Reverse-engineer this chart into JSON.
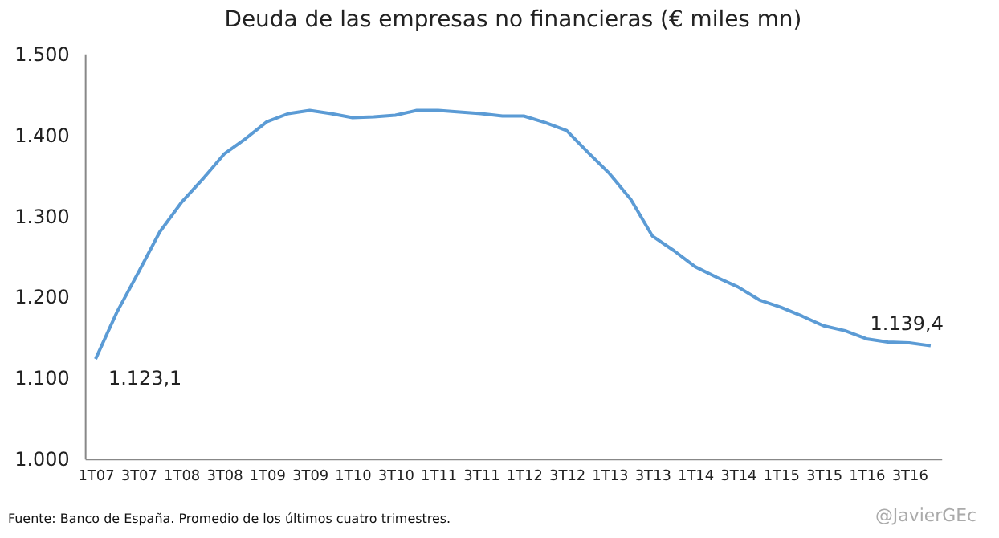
{
  "chart_data": {
    "type": "line",
    "title": "Deuda de las empresas no financieras (€ miles mn)",
    "categories": [
      "1T07",
      null,
      "3T07",
      null,
      "1T08",
      null,
      "3T08",
      null,
      "1T09",
      null,
      "3T09",
      null,
      "1T10",
      null,
      "3T10",
      null,
      "1T11",
      null,
      "3T11",
      null,
      "1T12",
      null,
      "3T12",
      null,
      "1T13",
      null,
      "3T13",
      null,
      "1T14",
      null,
      "3T14",
      null,
      "1T15",
      null,
      "3T15",
      null,
      "1T16",
      null,
      "3T16",
      null
    ],
    "values": [
      1123.1,
      1181,
      1230,
      1280,
      1316,
      1345,
      1376,
      1395,
      1416,
      1426,
      1430,
      1426,
      1421,
      1422,
      1424,
      1430,
      1430,
      1428,
      1426,
      1423,
      1423,
      1415,
      1405,
      1378,
      1352,
      1320,
      1275,
      1257,
      1237,
      1224,
      1212,
      1196,
      1187,
      1176,
      1164,
      1158,
      1148,
      1144,
      1143,
      1139.4
    ],
    "value_labels": [
      "1.123,1",
      null,
      null,
      null,
      null,
      null,
      null,
      null,
      null,
      null,
      null,
      null,
      null,
      null,
      null,
      null,
      null,
      null,
      null,
      null,
      null,
      null,
      null,
      null,
      null,
      null,
      null,
      null,
      null,
      null,
      null,
      null,
      null,
      null,
      null,
      null,
      null,
      null,
      null,
      "1.139,4"
    ],
    "color": "#5b9bd5",
    "ylim": [
      1000,
      1500
    ],
    "yticks": [
      {
        "value": 1000,
        "label": "1.000"
      },
      {
        "value": 1100,
        "label": "1.100"
      },
      {
        "value": 1200,
        "label": "1.200"
      },
      {
        "value": 1300,
        "label": "1.300"
      },
      {
        "value": 1400,
        "label": "1.400"
      },
      {
        "value": 1500,
        "label": "1.500"
      }
    ],
    "grid": false,
    "marker": "none",
    "line_style": "solid",
    "annotations": [
      "Fuente: Banco de España. Promedio de los últimos cuatro trimestres.",
      "@JavierGEc"
    ]
  }
}
